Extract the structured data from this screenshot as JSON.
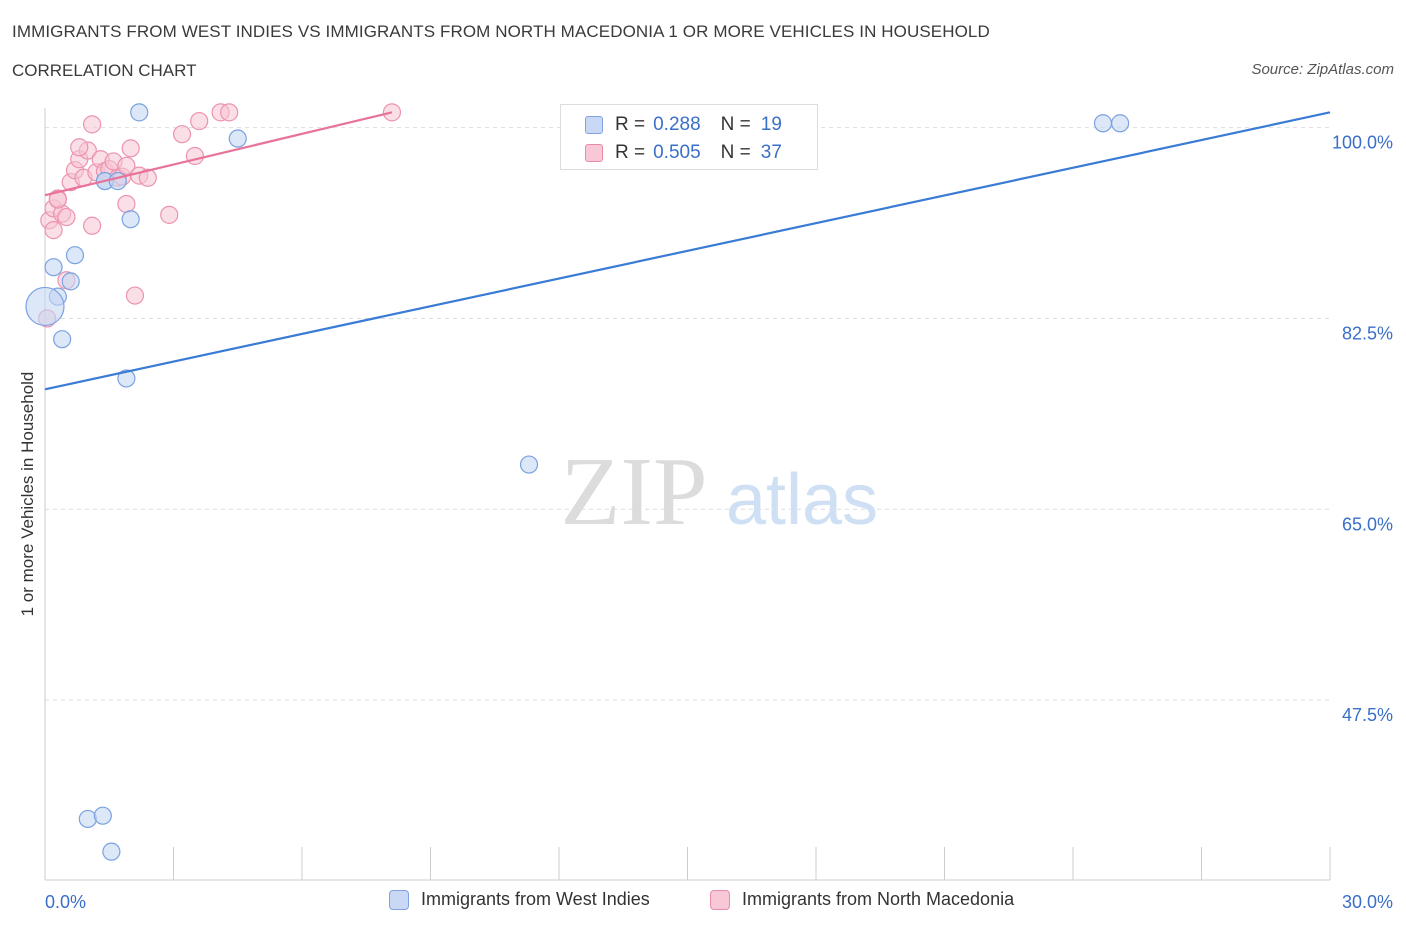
{
  "title": "IMMIGRANTS FROM WEST INDIES VS IMMIGRANTS FROM NORTH MACEDONIA 1 OR MORE VEHICLES IN HOUSEHOLD",
  "subtitle": "CORRELATION CHART",
  "source": "Source: ZipAtlas.com",
  "watermark": {
    "zip": "ZIP",
    "atlas": "atlas"
  },
  "legend": {
    "rows": [
      {
        "r_label": "R =",
        "r_value": "0.288",
        "n_label": "N =",
        "n_value": "19"
      },
      {
        "r_label": "R =",
        "r_value": "0.505",
        "n_label": "N =",
        "n_value": "37"
      }
    ]
  },
  "bottom_legend": {
    "series1": "Immigrants from West Indies",
    "series2": "Immigrants from North Macedonia"
  },
  "colors": {
    "blue_line": "#3a7bd5",
    "blue_fill": "#c5d7f4",
    "blue_stroke": "#7aa2e0",
    "pink_line": "#e8739a",
    "pink_fill": "#f6c4d3",
    "pink_stroke": "#ec93b0",
    "tick_label": "#3a6fc9",
    "grid": "#dddddd"
  },
  "chart_data": {
    "type": "scatter",
    "title": "IMMIGRANTS FROM WEST INDIES VS IMMIGRANTS FROM NORTH MACEDONIA 1 OR MORE VEHICLES IN HOUSEHOLD",
    "xlabel": "",
    "ylabel": "1 or more Vehicles in Household",
    "xlim": [
      0,
      30
    ],
    "ylim": [
      31,
      101.8
    ],
    "x_ticks_labeled": [
      {
        "value": 0,
        "label": "0.0%"
      },
      {
        "value": 30,
        "label": "30.0%"
      }
    ],
    "x_tick_marks": [
      0,
      3,
      6,
      9,
      12,
      15,
      18,
      21,
      24,
      27,
      30
    ],
    "y_ticks": [
      {
        "value": 100,
        "label": "100.0%"
      },
      {
        "value": 82.5,
        "label": "82.5%"
      },
      {
        "value": 65,
        "label": "65.0%"
      },
      {
        "value": 47.5,
        "label": "47.5%"
      }
    ],
    "series": [
      {
        "name": "Immigrants from West Indies",
        "color": "blue",
        "points": [
          [
            2.2,
            101.4
          ],
          [
            4.5,
            99.0
          ],
          [
            1.4,
            95.1
          ],
          [
            1.4,
            95.1
          ],
          [
            2.0,
            91.6
          ],
          [
            0.7,
            88.3
          ],
          [
            0.2,
            87.2
          ],
          [
            0.6,
            85.9
          ],
          [
            0.3,
            84.5
          ],
          [
            0.0,
            83.6
          ],
          [
            0.4,
            80.6
          ],
          [
            1.9,
            77.0
          ],
          [
            11.3,
            69.1
          ],
          [
            24.7,
            100.4
          ],
          [
            25.1,
            100.4
          ],
          [
            1.0,
            36.6
          ],
          [
            1.35,
            36.9
          ],
          [
            1.55,
            33.6
          ],
          [
            1.7,
            95.1
          ]
        ],
        "trend": {
          "x": [
            0,
            30
          ],
          "y": [
            76.0,
            101.4
          ]
        }
      },
      {
        "name": "Immigrants from North Macedonia",
        "color": "pink",
        "points": [
          [
            0.1,
            91.5
          ],
          [
            0.2,
            92.6
          ],
          [
            0.3,
            93.5
          ],
          [
            0.4,
            92.1
          ],
          [
            0.5,
            91.8
          ],
          [
            0.6,
            95.0
          ],
          [
            0.7,
            96.1
          ],
          [
            0.8,
            97.1
          ],
          [
            0.9,
            95.4
          ],
          [
            1.0,
            97.9
          ],
          [
            1.1,
            100.3
          ],
          [
            1.2,
            95.9
          ],
          [
            1.3,
            97.1
          ],
          [
            1.4,
            96.0
          ],
          [
            1.5,
            96.2
          ],
          [
            1.6,
            96.9
          ],
          [
            1.7,
            95.4
          ],
          [
            1.8,
            95.5
          ],
          [
            1.9,
            96.5
          ],
          [
            2.0,
            98.1
          ],
          [
            1.9,
            93.0
          ],
          [
            2.2,
            95.6
          ],
          [
            2.4,
            95.4
          ],
          [
            2.9,
            92.0
          ],
          [
            3.2,
            99.4
          ],
          [
            3.5,
            97.4
          ],
          [
            3.6,
            100.6
          ],
          [
            4.1,
            101.4
          ],
          [
            4.3,
            101.4
          ],
          [
            8.1,
            101.4
          ],
          [
            0.05,
            82.5
          ],
          [
            0.2,
            90.6
          ],
          [
            0.5,
            86.0
          ],
          [
            2.1,
            84.6
          ],
          [
            1.1,
            91.0
          ],
          [
            0.3,
            93.4
          ],
          [
            0.8,
            98.2
          ]
        ],
        "trend": {
          "x": [
            0,
            8.1
          ],
          "y": [
            93.8,
            101.4
          ]
        }
      }
    ]
  }
}
